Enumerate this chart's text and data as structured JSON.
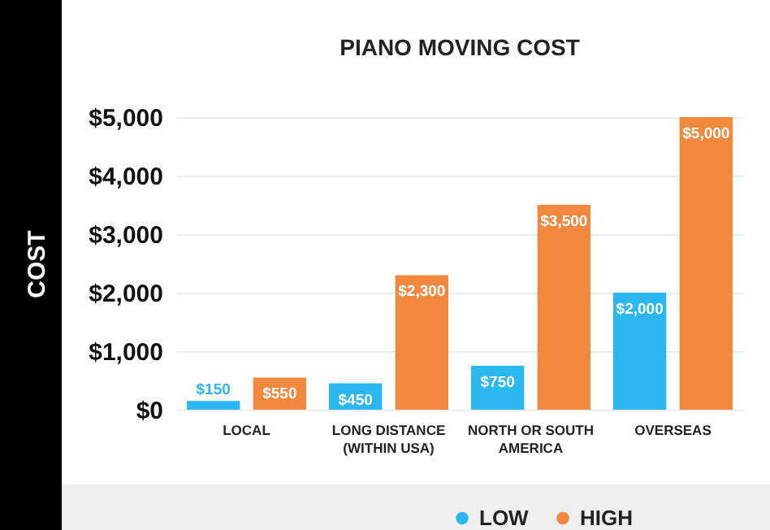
{
  "chart_data": {
    "type": "bar",
    "title": "PIANO MOVING COST",
    "ylabel": "COST",
    "categories": [
      "LOCAL",
      "LONG DISTANCE (WITHIN USA)",
      "NORTH OR SOUTH AMERICA",
      "OVERSEAS"
    ],
    "series": [
      {
        "name": "LOW",
        "color": "#2bb8f2",
        "values": [
          150,
          450,
          750,
          2000
        ],
        "value_labels": [
          "$150",
          "$450",
          "$750",
          "$2,000"
        ]
      },
      {
        "name": "HIGH",
        "color": "#f0883d",
        "values": [
          550,
          2300,
          3500,
          5000
        ],
        "value_labels": [
          "$550",
          "$2,300",
          "$3,500",
          "$5,000"
        ]
      }
    ],
    "ylim": [
      0,
      5000
    ],
    "yticks": [
      {
        "value": 0,
        "label": "$0"
      },
      {
        "value": 1000,
        "label": "$1,000"
      },
      {
        "value": 2000,
        "label": "$2,000"
      },
      {
        "value": 3000,
        "label": "$3,000"
      },
      {
        "value": 4000,
        "label": "$4,000"
      },
      {
        "value": 5000,
        "label": "$5,000"
      }
    ],
    "grid": "y",
    "legend": "bottom"
  }
}
